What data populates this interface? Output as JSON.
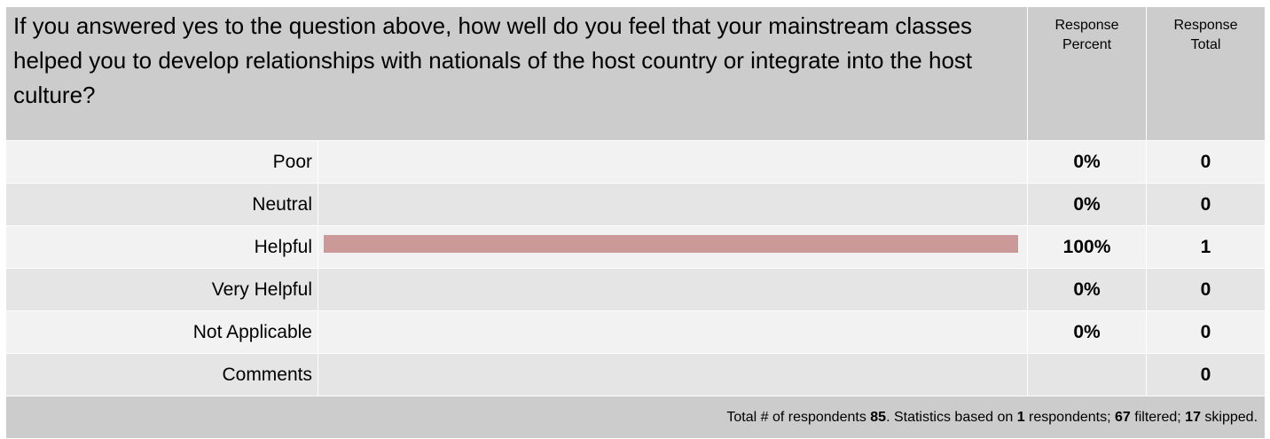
{
  "question": "If you answered yes to the question above, how well do you feel that your mainstream classes helped you to develop relationships with nationals of the host country or integrate into the host culture?",
  "columns": {
    "percent": "Response\nPercent",
    "total": "Response\nTotal"
  },
  "rows": [
    {
      "label": "Poor",
      "percent": "0%",
      "total": "0",
      "fill": 0
    },
    {
      "label": "Neutral",
      "percent": "0%",
      "total": "0",
      "fill": 0
    },
    {
      "label": "Helpful",
      "percent": "100%",
      "total": "1",
      "fill": 1
    },
    {
      "label": "Very Helpful",
      "percent": "0%",
      "total": "0",
      "fill": 0
    },
    {
      "label": "Not Applicable",
      "percent": "0%",
      "total": "0",
      "fill": 0
    },
    {
      "label": "Comments",
      "percent": "",
      "total": "0",
      "fill": 0
    }
  ],
  "bar_color": "#cc9999",
  "footer": {
    "t1": "Total # of respondents ",
    "respondents": "85",
    "t2": ". Statistics based on ",
    "based_on": "1",
    "t3": " respondents; ",
    "filtered": "67",
    "t4": " filtered; ",
    "skipped": "17",
    "t5": " skipped."
  }
}
